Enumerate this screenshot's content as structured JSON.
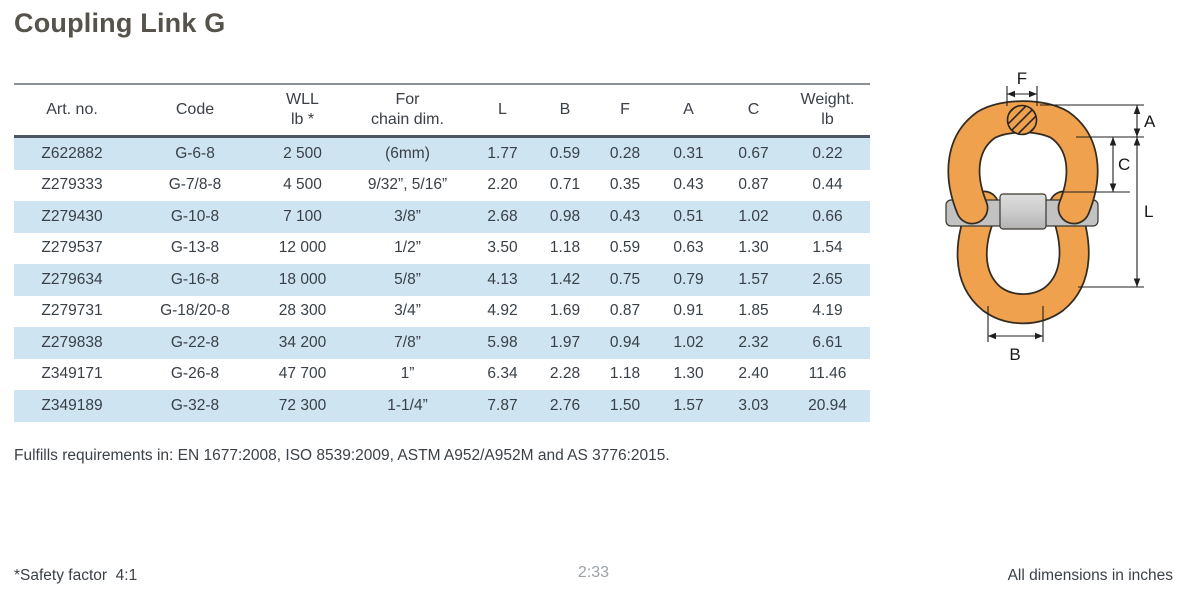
{
  "page": {
    "title": "Coupling Link G",
    "compliance_note": "Fulfills requirements in: EN 1677:2008, ISO 8539:2009, ASTM A952/A952M and AS 3776:2015.",
    "footer": {
      "safety_note": "*Safety factor  4:1",
      "page_indicator": "2:33",
      "dimensions_note": "All dimensions in inches"
    }
  },
  "table": {
    "columns": [
      {
        "label": "Art. no.",
        "sub": ""
      },
      {
        "label": "Code",
        "sub": ""
      },
      {
        "label": "WLL",
        "sub": "lb *"
      },
      {
        "label": "For",
        "sub": "chain dim."
      },
      {
        "label": "L",
        "sub": ""
      },
      {
        "label": "B",
        "sub": ""
      },
      {
        "label": "F",
        "sub": ""
      },
      {
        "label": "A",
        "sub": ""
      },
      {
        "label": "C",
        "sub": ""
      },
      {
        "label": "Weight.",
        "sub": "lb"
      }
    ],
    "rows": [
      [
        "Z622882",
        "G-6-8",
        "2 500",
        "(6mm)",
        "1.77",
        "0.59",
        "0.28",
        "0.31",
        "0.67",
        "0.22"
      ],
      [
        "Z279333",
        "G-7/8-8",
        "4 500",
        "9/32”, 5/16”",
        "2.20",
        "0.71",
        "0.35",
        "0.43",
        "0.87",
        "0.44"
      ],
      [
        "Z279430",
        "G-10-8",
        "7 100",
        "3/8”",
        "2.68",
        "0.98",
        "0.43",
        "0.51",
        "1.02",
        "0.66"
      ],
      [
        "Z279537",
        "G-13-8",
        "12 000",
        "1/2”",
        "3.50",
        "1.18",
        "0.59",
        "0.63",
        "1.30",
        "1.54"
      ],
      [
        "Z279634",
        "G-16-8",
        "18 000",
        "5/8”",
        "4.13",
        "1.42",
        "0.75",
        "0.79",
        "1.57",
        "2.65"
      ],
      [
        "Z279731",
        "G-18/20-8",
        "28 300",
        "3/4”",
        "4.92",
        "1.69",
        "0.87",
        "0.91",
        "1.85",
        "4.19"
      ],
      [
        "Z279838",
        "G-22-8",
        "34 200",
        "7/8”",
        "5.98",
        "1.97",
        "0.94",
        "1.02",
        "2.32",
        "6.61"
      ],
      [
        "Z349171",
        "G-26-8",
        "47 700",
        "1”",
        "6.34",
        "2.28",
        "1.18",
        "1.30",
        "2.40",
        "11.46"
      ],
      [
        "Z349189",
        "G-32-8",
        "72 300",
        "1-1/4”",
        "7.87",
        "2.76",
        "1.50",
        "1.57",
        "3.03",
        "20.94"
      ]
    ]
  },
  "diagram": {
    "labels": {
      "f": "F",
      "a": "A",
      "c": "C",
      "l": "L",
      "b": "B"
    }
  },
  "colors": {
    "row_highlight": "#cfe4f1",
    "header_rule_top": "#8a9197",
    "header_rule_bottom": "#4a5661",
    "link_orange": "#f0a14d",
    "link_outline": "#332c23",
    "pin_gray": "#c9c9c9",
    "text": "#3a4046",
    "muted_text": "#9aa1a7",
    "title_text": "#56524c"
  }
}
